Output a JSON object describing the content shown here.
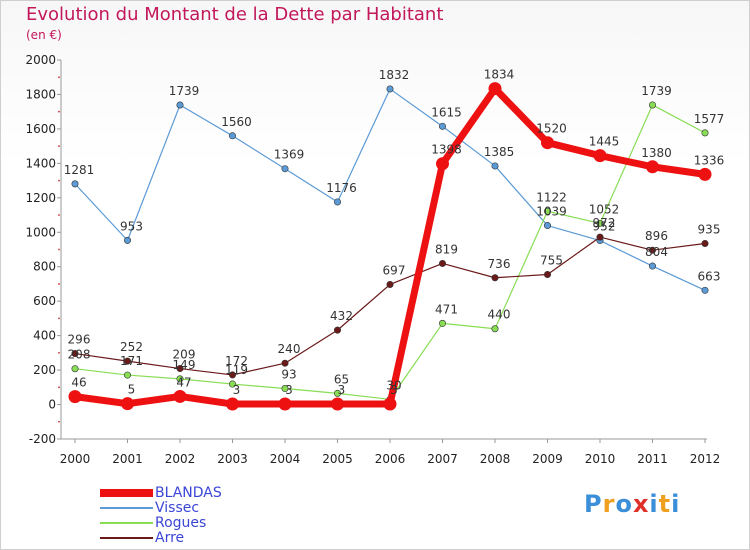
{
  "chart_data": {
    "type": "line",
    "title": "Evolution du Montant de la Dette par Habitant",
    "subtitle": "(en €)",
    "x": [
      "2000",
      "2001",
      "2002",
      "2003",
      "2004",
      "2005",
      "2006",
      "2007",
      "2008",
      "2009",
      "2010",
      "2011",
      "2012"
    ],
    "ylim": [
      -200,
      2000
    ],
    "yticks": [
      -200,
      0,
      200,
      400,
      600,
      800,
      1000,
      1200,
      1400,
      1600,
      1800,
      2000
    ],
    "grid": false,
    "legend_position": "bottom-left",
    "series": [
      {
        "name": "BLANDAS",
        "color": "#ee1111",
        "values": [
          46,
          5,
          47,
          3,
          3,
          3,
          3,
          1398,
          1834,
          1520,
          1445,
          1380,
          1336
        ]
      },
      {
        "name": "Vissec",
        "color": "#5b9ad5",
        "values": [
          1281,
          953,
          1739,
          1560,
          1369,
          1176,
          1832,
          1615,
          1385,
          1039,
          952,
          804,
          663
        ]
      },
      {
        "name": "Rogues",
        "color": "#88dd55",
        "values": [
          208,
          171,
          149,
          119,
          93,
          65,
          30,
          471,
          440,
          1122,
          1052,
          1739,
          1577
        ]
      },
      {
        "name": "Arre",
        "color": "#6b1a1a",
        "values": [
          296,
          252,
          209,
          172,
          240,
          432,
          697,
          819,
          736,
          755,
          972,
          896,
          935
        ]
      }
    ]
  },
  "logo": {
    "letters": [
      "P",
      "r",
      "o",
      "x",
      "i",
      "t",
      "i"
    ],
    "colors": [
      "#3a8fd8",
      "#f0a020",
      "#3a8fd8",
      "#e0302a",
      "#3a8fd8",
      "#f0a020",
      "#3a8fd8"
    ]
  }
}
